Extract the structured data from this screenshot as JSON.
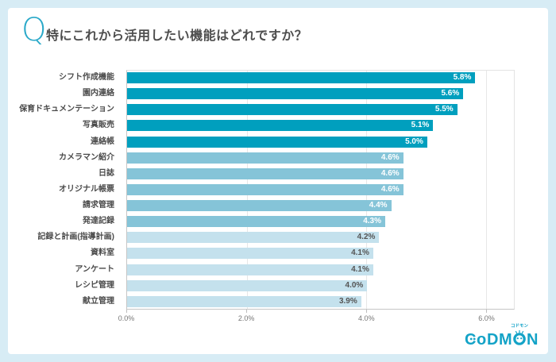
{
  "page": {
    "background_color": "#d7ecf5",
    "card_color": "#ffffff"
  },
  "header": {
    "q_mark": "Q",
    "q_color": "#2aa9c9",
    "title": "特にこれから活用したい機能はどれですか？"
  },
  "chart_data": {
    "type": "bar",
    "orientation": "horizontal",
    "title": "特にこれから活用したい機能はどれですか？",
    "categories": [
      "シフト作成機能",
      "園内連絡",
      "保育ドキュメンテーション",
      "写真販売",
      "連絡帳",
      "カメラマン紹介",
      "日誌",
      "オリジナル帳票",
      "請求管理",
      "発達記録",
      "記録と計画(指導計画)",
      "資料室",
      "アンケート",
      "レシピ管理",
      "献立管理"
    ],
    "values": [
      5.8,
      5.6,
      5.5,
      5.1,
      5.0,
      4.6,
      4.6,
      4.6,
      4.4,
      4.3,
      4.2,
      4.1,
      4.1,
      4.0,
      3.9
    ],
    "value_labels": [
      "5.8%",
      "5.6%",
      "5.5%",
      "5.1%",
      "5.0%",
      "4.6%",
      "4.6%",
      "4.6%",
      "4.4%",
      "4.3%",
      "4.2%",
      "4.1%",
      "4.1%",
      "4.0%",
      "3.9%"
    ],
    "x_ticks": [
      "0.0%",
      "2.0%",
      "4.0%",
      "6.0%"
    ],
    "x_tick_values": [
      0,
      2,
      4,
      6
    ],
    "xlim": [
      0,
      6.47
    ],
    "grid": true,
    "legend": false,
    "color_groups": [
      "high",
      "high",
      "high",
      "high",
      "high",
      "mid",
      "mid",
      "mid",
      "mid",
      "mid",
      "low",
      "low",
      "low",
      "low",
      "low"
    ],
    "bar_colors": {
      "high": "#009fbe",
      "mid": "#85c4d8",
      "low": "#c4e1ed"
    },
    "value_label_colors": {
      "high": "#ffffff",
      "mid": "#ffffff",
      "low": "#555555"
    }
  },
  "footer": {
    "logo_text": "CODMON",
    "logo_katakana": "コドモン",
    "logo_color": "#14a3c7"
  }
}
